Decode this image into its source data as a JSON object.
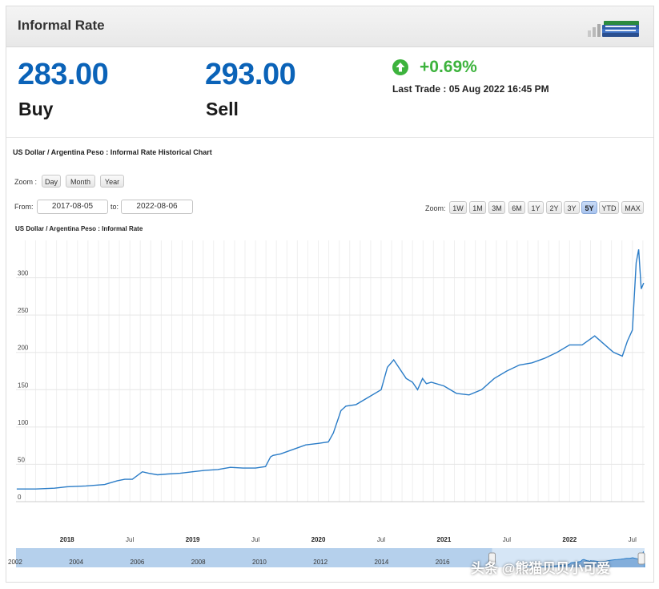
{
  "header": {
    "title": "Informal Rate",
    "icon": "money-stack-icon"
  },
  "rates": {
    "buy_value": "283.00",
    "buy_label": "Buy",
    "sell_value": "293.00",
    "sell_label": "Sell",
    "change": "+0.69%",
    "last_trade": "Last Trade : 05 Aug 2022 16:45 PM"
  },
  "chart_section": {
    "heading": "US Dollar / Argentina Peso : Informal Rate Historical Chart",
    "zoom_label": "Zoom :",
    "zoom_units": [
      "Day",
      "Month",
      "Year"
    ],
    "from_label": "From:",
    "from_value": "2017-08-05",
    "to_label": "to:",
    "to_value": "2022-08-06",
    "range_zoom_label": "Zoom:",
    "range_buttons": [
      "1W",
      "1M",
      "3M",
      "6M",
      "1Y",
      "2Y",
      "3Y",
      "5Y",
      "YTD",
      "MAX"
    ],
    "active_range": "5Y"
  },
  "chart_data": {
    "type": "line",
    "title": "US Dollar / Argentina Peso : Informal Rate",
    "xlabel": "",
    "ylabel": "",
    "x_range": [
      "2017-08-05",
      "2022-08-06"
    ],
    "ylim": [
      0,
      350
    ],
    "y_ticks": [
      0,
      50,
      100,
      150,
      200,
      250,
      300
    ],
    "x_ticks": [
      {
        "label": "2018",
        "date": 2018.0,
        "bold": true
      },
      {
        "label": "Jul",
        "date": 2018.5,
        "bold": false
      },
      {
        "label": "2019",
        "date": 2019.0,
        "bold": true
      },
      {
        "label": "Jul",
        "date": 2019.5,
        "bold": false
      },
      {
        "label": "2020",
        "date": 2020.0,
        "bold": true
      },
      {
        "label": "Jul",
        "date": 2020.5,
        "bold": false
      },
      {
        "label": "2021",
        "date": 2021.0,
        "bold": true
      },
      {
        "label": "Jul",
        "date": 2021.5,
        "bold": false
      },
      {
        "label": "2022",
        "date": 2022.0,
        "bold": true
      },
      {
        "label": "Jul",
        "date": 2022.5,
        "bold": false
      }
    ],
    "grid": true,
    "line_color": "#2a7cc7",
    "series": [
      {
        "x": [
          2017.6,
          2017.75,
          2017.9,
          2018.0,
          2018.15,
          2018.3,
          2018.4,
          2018.46,
          2018.52,
          2018.6,
          2018.65,
          2018.72,
          2018.8,
          2018.9,
          2019.0,
          2019.1,
          2019.2,
          2019.3,
          2019.4,
          2019.5,
          2019.58,
          2019.62,
          2019.64,
          2019.7,
          2019.8,
          2019.9,
          2020.0,
          2020.08,
          2020.12,
          2020.18,
          2020.22,
          2020.3,
          2020.4,
          2020.5,
          2020.55,
          2020.6,
          2020.7,
          2020.75,
          2020.79,
          2020.83,
          2020.86,
          2020.9,
          2021.0,
          2021.1,
          2021.2,
          2021.3,
          2021.4,
          2021.5,
          2021.6,
          2021.7,
          2021.8,
          2021.9,
          2022.0,
          2022.1,
          2022.2,
          2022.35,
          2022.42,
          2022.46,
          2022.5,
          2022.53,
          2022.55,
          2022.57,
          2022.59
        ],
        "y": [
          17,
          17,
          18,
          20,
          21,
          23,
          28,
          30,
          30,
          40,
          38,
          36,
          37,
          38,
          40,
          42,
          43,
          46,
          45,
          45,
          47,
          60,
          62,
          64,
          70,
          76,
          78,
          80,
          92,
          122,
          128,
          130,
          140,
          150,
          180,
          190,
          165,
          160,
          150,
          165,
          158,
          160,
          155,
          145,
          143,
          150,
          165,
          175,
          183,
          186,
          192,
          200,
          210,
          210,
          222,
          200,
          195,
          215,
          230,
          320,
          338,
          285,
          293
        ]
      }
    ],
    "navigator": {
      "labels": [
        "2002",
        "2004",
        "2006",
        "2008",
        "2010",
        "2012",
        "2014",
        "2016"
      ],
      "start_year": 2002.0,
      "end_year": 2022.59
    }
  },
  "watermark": "头条 @熊猫贝贝小可爱"
}
